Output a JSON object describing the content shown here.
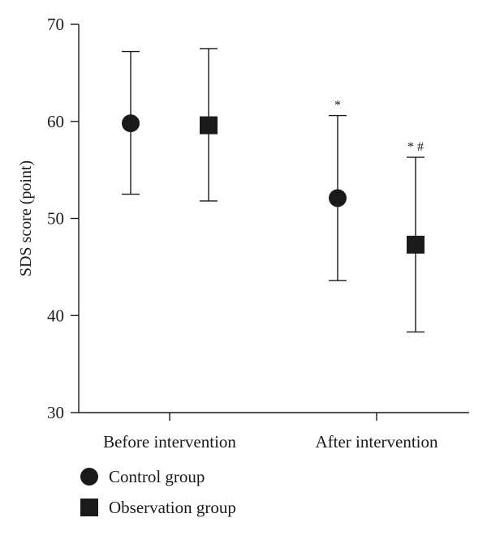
{
  "chart_data": {
    "type": "scatter",
    "title": "",
    "xlabel": "",
    "ylabel": "SDS score (point)",
    "ylim": [
      30,
      70
    ],
    "yticks": [
      30,
      40,
      50,
      60,
      70
    ],
    "categories": [
      "Before intervention",
      "After intervention"
    ],
    "grid": false,
    "legend_position": "bottom-left",
    "series": [
      {
        "name": "Control group",
        "marker": "circle",
        "color": "#1a1a1a",
        "values": [
          59.8,
          52.1
        ],
        "error_low": [
          52.5,
          43.6
        ],
        "error_high": [
          67.2,
          60.6
        ],
        "annotations": [
          "",
          "*"
        ]
      },
      {
        "name": "Observation group",
        "marker": "square",
        "color": "#1a1a1a",
        "values": [
          59.6,
          47.3
        ],
        "error_low": [
          51.8,
          38.3
        ],
        "error_high": [
          67.5,
          56.3
        ],
        "annotations": [
          "",
          "* #"
        ]
      }
    ]
  }
}
